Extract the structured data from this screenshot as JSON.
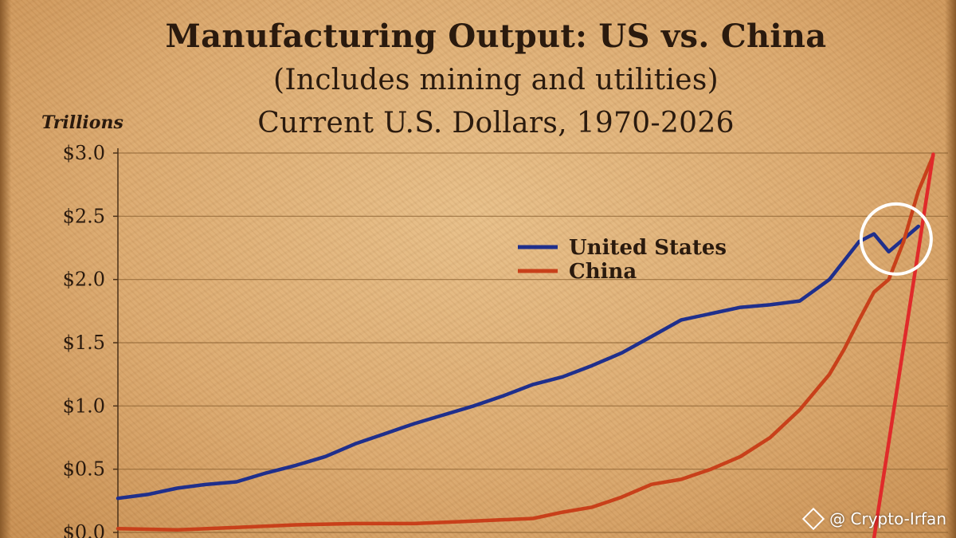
{
  "watermark": "@ Crypto-Irfan",
  "chart_data": {
    "type": "line",
    "title": "Manufacturing Output: US vs. China",
    "subtitle": "(Includes mining and utilities)",
    "subtitle2": "Current U.S. Dollars, 1970-2026",
    "ylabel": "Trillions",
    "ylim": [
      0,
      3.0
    ],
    "xlim": [
      1970,
      2026
    ],
    "yticks": [
      {
        "value": 0.0,
        "label": "$0.0"
      },
      {
        "value": 0.5,
        "label": "$0.5"
      },
      {
        "value": 1.0,
        "label": "$1.0"
      },
      {
        "value": 1.5,
        "label": "$1.5"
      },
      {
        "value": 2.0,
        "label": "$2.0"
      },
      {
        "value": 2.5,
        "label": "$2.5"
      },
      {
        "value": 3.0,
        "label": "$3.0"
      }
    ],
    "grid": true,
    "legend_position": "upper-right",
    "series": [
      {
        "name": "United States",
        "color": "#1f2f8c",
        "x": [
          1970,
          1972,
          1974,
          1976,
          1978,
          1980,
          1982,
          1984,
          1986,
          1988,
          1990,
          1992,
          1994,
          1996,
          1998,
          2000,
          2002,
          2004,
          2006,
          2008,
          2010,
          2012,
          2014,
          2016,
          2018,
          2020,
          2021,
          2022,
          2024
        ],
        "values": [
          0.27,
          0.3,
          0.35,
          0.38,
          0.4,
          0.47,
          0.53,
          0.6,
          0.7,
          0.78,
          0.86,
          0.93,
          1.0,
          1.08,
          1.17,
          1.23,
          1.32,
          1.42,
          1.55,
          1.68,
          1.73,
          1.78,
          1.8,
          1.83,
          2.0,
          2.3,
          2.36,
          2.22,
          2.42
        ]
      },
      {
        "name": "China",
        "color": "#c8401a",
        "x": [
          1970,
          1974,
          1978,
          1982,
          1986,
          1990,
          1994,
          1998,
          2000,
          2002,
          2004,
          2006,
          2008,
          2010,
          2012,
          2014,
          2016,
          2018,
          2019,
          2020,
          2021,
          2022,
          2023,
          2024,
          2025
        ],
        "values": [
          0.03,
          0.02,
          0.04,
          0.06,
          0.07,
          0.07,
          0.09,
          0.11,
          0.16,
          0.2,
          0.28,
          0.38,
          0.42,
          0.5,
          0.6,
          0.75,
          0.97,
          1.25,
          1.45,
          1.68,
          1.9,
          2.0,
          2.3,
          2.7,
          2.98
        ]
      }
    ],
    "annotations": [
      {
        "type": "trend-line",
        "color": "#e02a2a",
        "x": [
          2021,
          2025
        ],
        "y": [
          -0.05,
          2.99
        ]
      },
      {
        "type": "circle",
        "color": "#ffffff",
        "center_x": 2022.5,
        "center_y": 2.32
      }
    ]
  }
}
